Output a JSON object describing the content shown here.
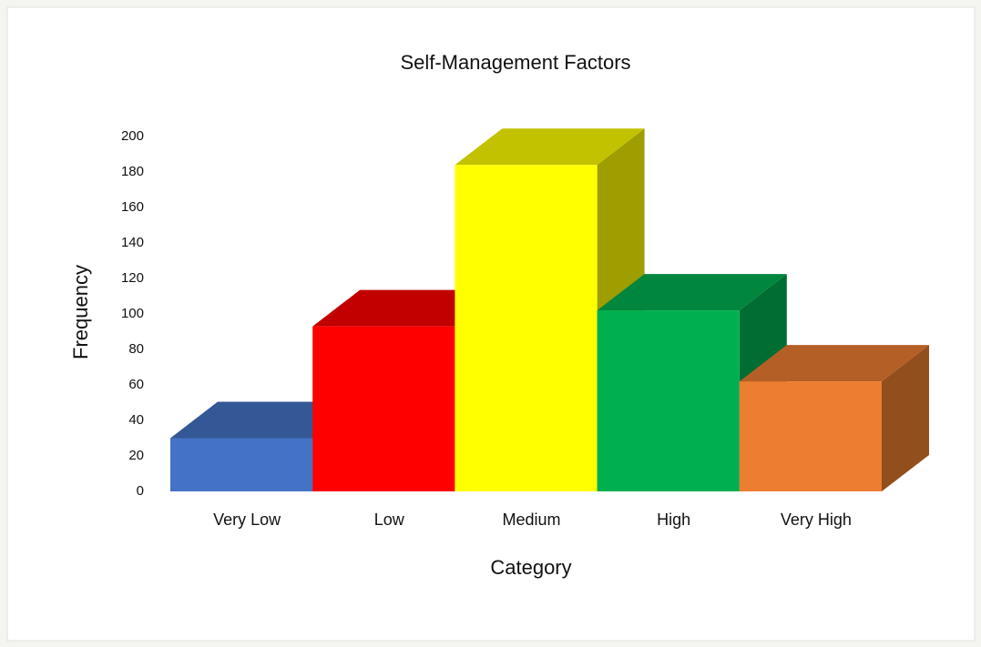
{
  "chart_data": {
    "type": "bar3d",
    "title": "Self-Management Factors",
    "x_label": "Category",
    "y_label": "Frequency",
    "categories": [
      "Very Low",
      "Low",
      "Medium",
      "High",
      "Very High"
    ],
    "values": [
      30,
      93,
      184,
      102,
      62
    ],
    "colors": [
      "#4472c4",
      "#ff0000",
      "#ffff00",
      "#00b050",
      "#ed7d31"
    ],
    "ylim": [
      0,
      200
    ],
    "yticks": [
      0,
      20,
      40,
      60,
      80,
      100,
      120,
      140,
      160,
      180,
      200
    ],
    "grid": false
  }
}
